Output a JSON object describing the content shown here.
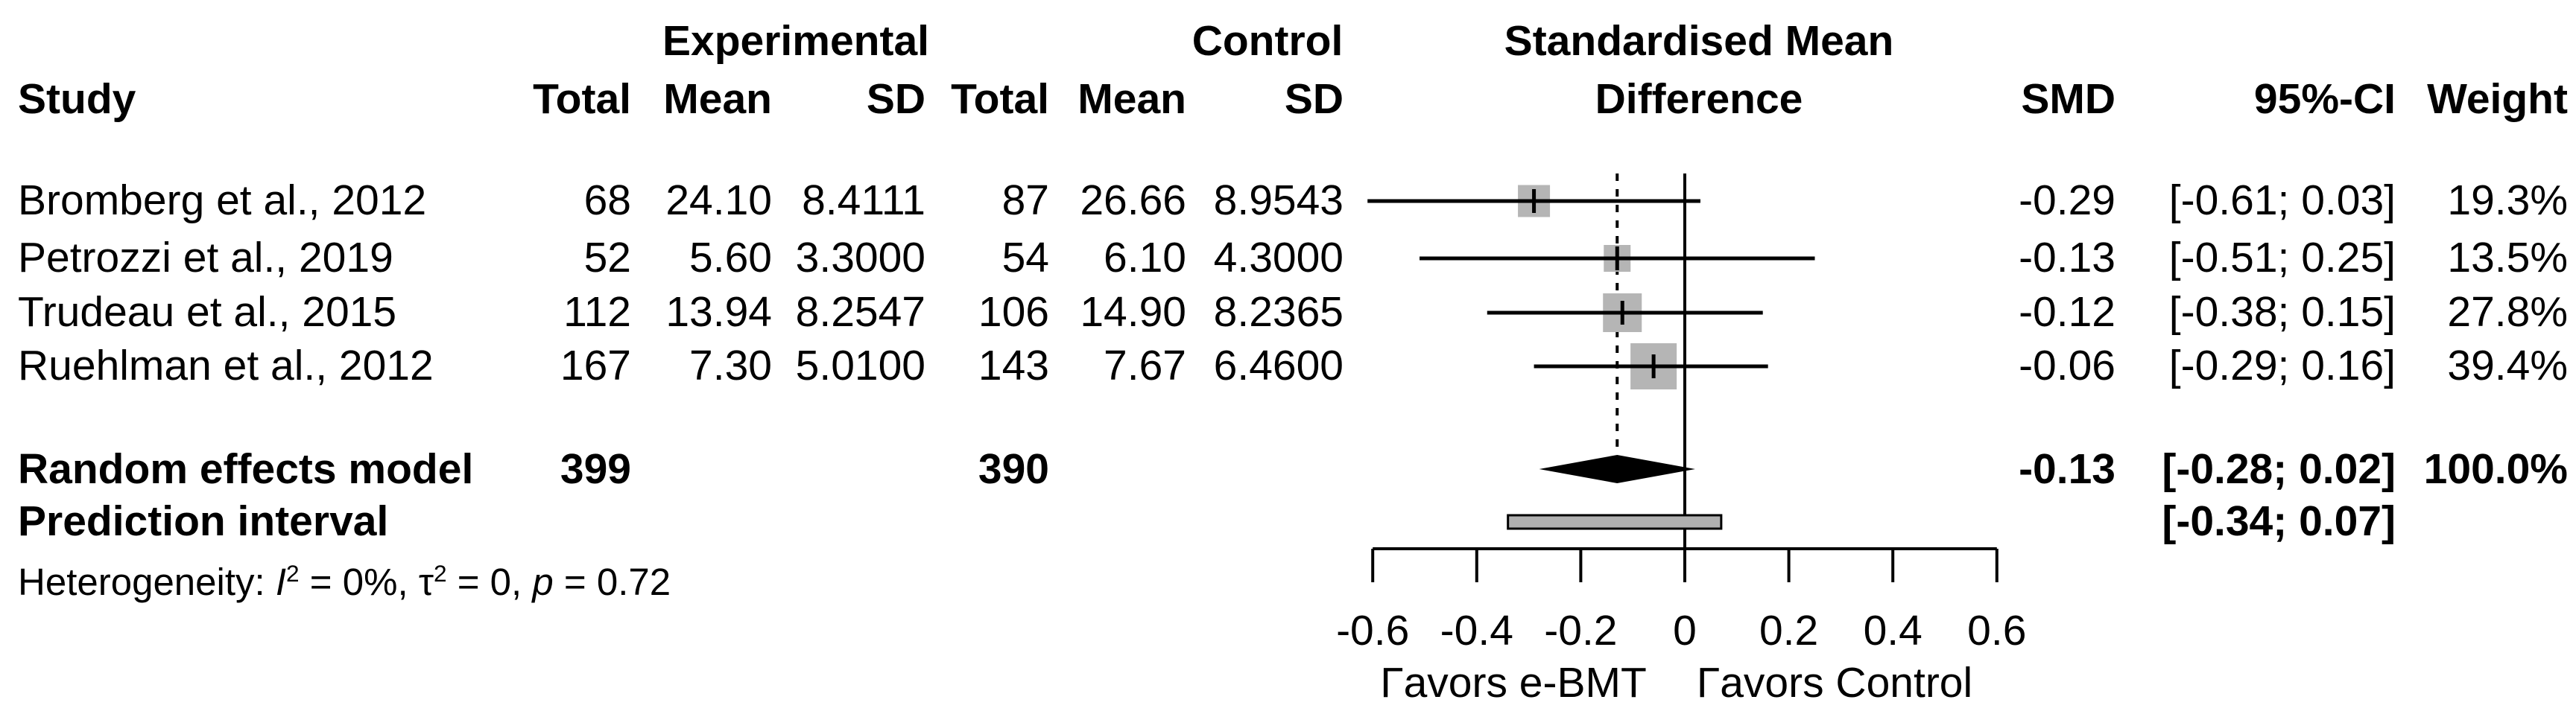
{
  "chart_data": {
    "type": "forest",
    "header": {
      "group_experimental": "Experimental",
      "group_control": "Control",
      "plot_title_line1": "Standardised Mean",
      "plot_title_line2": "Difference",
      "col_study": "Study",
      "col_total_exp": "Total",
      "col_mean_exp": "Mean",
      "col_sd_exp": "SD",
      "col_total_ctrl": "Total",
      "col_mean_ctrl": "Mean",
      "col_sd_ctrl": "SD",
      "col_smd": "SMD",
      "col_ci": "95%-CI",
      "col_weight": "Weight"
    },
    "studies": [
      {
        "name": "Bromberg et al., 2012",
        "exp_total": "68",
        "exp_mean": "24.10",
        "exp_sd": "8.4111",
        "ctrl_total": "87",
        "ctrl_mean": "26.66",
        "ctrl_sd": "8.9543",
        "smd": -0.29,
        "ci_low": -0.61,
        "ci_high": 0.03,
        "smd_label": "-0.29",
        "ci_label": "[-0.61; 0.03]",
        "weight_pct": 19.3,
        "weight_label": "19.3%"
      },
      {
        "name": "Petrozzi et al., 2019",
        "exp_total": "52",
        "exp_mean": "5.60",
        "exp_sd": "3.3000",
        "ctrl_total": "54",
        "ctrl_mean": "6.10",
        "ctrl_sd": "4.3000",
        "smd": -0.13,
        "ci_low": -0.51,
        "ci_high": 0.25,
        "smd_label": "-0.13",
        "ci_label": "[-0.51; 0.25]",
        "weight_pct": 13.5,
        "weight_label": "13.5%"
      },
      {
        "name": "Trudeau et al., 2015",
        "exp_total": "112",
        "exp_mean": "13.94",
        "exp_sd": "8.2547",
        "ctrl_total": "106",
        "ctrl_mean": "14.90",
        "ctrl_sd": "8.2365",
        "smd": -0.12,
        "ci_low": -0.38,
        "ci_high": 0.15,
        "smd_label": "-0.12",
        "ci_label": "[-0.38; 0.15]",
        "weight_pct": 27.8,
        "weight_label": "27.8%"
      },
      {
        "name": "Ruehlman et al., 2012",
        "exp_total": "167",
        "exp_mean": "7.30",
        "exp_sd": "5.0100",
        "ctrl_total": "143",
        "ctrl_mean": "7.67",
        "ctrl_sd": "6.4600",
        "smd": -0.06,
        "ci_low": -0.29,
        "ci_high": 0.16,
        "smd_label": "-0.06",
        "ci_label": "[-0.29; 0.16]",
        "weight_pct": 39.4,
        "weight_label": "39.4%"
      }
    ],
    "summary": {
      "label": "Random effects model",
      "exp_total": "399",
      "ctrl_total": "390",
      "smd": -0.13,
      "ci_low": -0.28,
      "ci_high": 0.02,
      "smd_label": "-0.13",
      "ci_label": "[-0.28; 0.02]",
      "weight_label": "100.0%"
    },
    "prediction": {
      "label": "Prediction interval",
      "low": -0.34,
      "high": 0.07,
      "ci_label": "[-0.34; 0.07]"
    },
    "heterogeneity": {
      "prefix": "Heterogeneity: ",
      "i_symbol": "I",
      "i_sup": "2",
      "seg1": " = 0%, ",
      "tau_symbol": "τ",
      "tau_sup": "2",
      "seg2": " = 0, ",
      "p_symbol": "p",
      "seg3": " = 0.72"
    },
    "axis": {
      "min": -0.6,
      "max": 0.6,
      "ticks": [
        -0.6,
        -0.4,
        -0.2,
        0,
        0.2,
        0.4,
        0.6
      ],
      "tick_labels": [
        "-0.6",
        "-0.4",
        "-0.2",
        "0",
        "0.2",
        "0.4",
        "0.6"
      ],
      "zero_line": 0,
      "pooled_effect_line": -0.13
    },
    "footer": {
      "favors_left": "Γavors e-BMT",
      "favors_right": "Γavors Control"
    }
  },
  "colors": {
    "text": "#000000",
    "square_fill": "#b5b5b5",
    "diamond_fill": "#000000",
    "prediction_fill": "#b0b0b0",
    "prediction_border": "#000000",
    "line": "#000000"
  }
}
